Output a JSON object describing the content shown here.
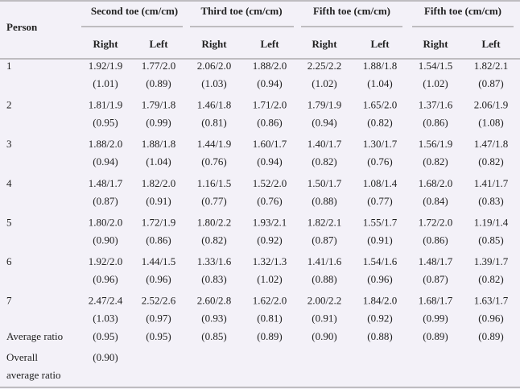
{
  "table": {
    "header": {
      "first": "Person",
      "groups": [
        "Second toe (cm/cm)",
        "Third toe (cm/cm)",
        "Fifth toe (cm/cm)",
        "Fifth toe (cm/cm)"
      ],
      "sub": [
        "Right",
        "Left",
        "Right",
        "Left",
        "Right",
        "Left",
        "Right",
        "Left"
      ]
    },
    "rows": [
      {
        "label": "1",
        "cells": [
          [
            "1.92/1.9",
            "(1.01)"
          ],
          [
            "1.77/2.0",
            "(0.89)"
          ],
          [
            "2.06/2.0",
            "(1.03)"
          ],
          [
            "1.88/2.0",
            "(0.94)"
          ],
          [
            "2.25/2.2",
            "(1.02)"
          ],
          [
            "1.88/1.8",
            "(1.04)"
          ],
          [
            "1.54/1.5",
            "(1.02)"
          ],
          [
            "1.82/2.1",
            "(0.87)"
          ]
        ]
      },
      {
        "label": "2",
        "cells": [
          [
            "1.81/1.9",
            "(0.95)"
          ],
          [
            "1.79/1.8",
            "(0.99)"
          ],
          [
            "1.46/1.8",
            "(0.81)"
          ],
          [
            "1.71/2.0",
            "(0.86)"
          ],
          [
            "1.79/1.9",
            "(0.94)"
          ],
          [
            "1.65/2.0",
            "(0.82)"
          ],
          [
            "1.37/1.6",
            "(0.86)"
          ],
          [
            "2.06/1.9",
            "(1.08)"
          ]
        ]
      },
      {
        "label": "3",
        "cells": [
          [
            "1.88/2.0",
            "(0.94)"
          ],
          [
            "1.88/1.8",
            "(1.04)"
          ],
          [
            "1.44/1.9",
            "(0.76)"
          ],
          [
            "1.60/1.7",
            "(0.94)"
          ],
          [
            "1.40/1.7",
            "(0.82)"
          ],
          [
            "1.30/1.7",
            "(0.76)"
          ],
          [
            "1.56/1.9",
            "(0.82)"
          ],
          [
            "1.47/1.8",
            "(0.82)"
          ]
        ]
      },
      {
        "label": "4",
        "cells": [
          [
            "1.48/1.7",
            "(0.87)"
          ],
          [
            "1.82/2.0",
            "(0.91)"
          ],
          [
            "1.16/1.5",
            "(0.77)"
          ],
          [
            "1.52/2.0",
            "(0.76)"
          ],
          [
            "1.50/1.7",
            "(0.88)"
          ],
          [
            "1.08/1.4",
            "(0.77)"
          ],
          [
            "1.68/2.0",
            "(0.84)"
          ],
          [
            "1.41/1.7",
            "(0.83)"
          ]
        ]
      },
      {
        "label": "5",
        "cells": [
          [
            "1.80/2.0",
            "(0.90)"
          ],
          [
            "1.72/1.9",
            "(0.86)"
          ],
          [
            "1.80/2.2",
            "(0.82)"
          ],
          [
            "1.93/2.1",
            "(0.92)"
          ],
          [
            "1.82/2.1",
            "(0.87)"
          ],
          [
            "1.55/1.7",
            "(0.91)"
          ],
          [
            "1.72/2.0",
            "(0.86)"
          ],
          [
            "1.19/1.4",
            "(0.85)"
          ]
        ]
      },
      {
        "label": "6",
        "cells": [
          [
            "1.92/2.0",
            "(0.96)"
          ],
          [
            "1.44/1.5",
            "(0.96)"
          ],
          [
            "1.33/1.6",
            "(0.83)"
          ],
          [
            "1.32/1.3",
            "(1.02)"
          ],
          [
            "1.41/1.6",
            "(0.88)"
          ],
          [
            "1.54/1.6",
            "(0.96)"
          ],
          [
            "1.48/1.7",
            "(0.87)"
          ],
          [
            "1.39/1.7",
            "(0.82)"
          ]
        ]
      },
      {
        "label": "7",
        "cells": [
          [
            "2.47/2.4",
            "(1.03)"
          ],
          [
            "2.52/2.6",
            "(0.97)"
          ],
          [
            "2.60/2.8",
            "(0.93)"
          ],
          [
            "1.62/2.0",
            "(0.81)"
          ],
          [
            "2.00/2.2",
            "(0.91)"
          ],
          [
            "1.84/2.0",
            "(0.92)"
          ],
          [
            "1.68/1.7",
            "(0.99)"
          ],
          [
            "1.63/1.7",
            "(0.96)"
          ]
        ]
      }
    ],
    "average": {
      "label": "Average ratio",
      "cells": [
        "(0.95)",
        "(0.95)",
        "(0.85)",
        "(0.89)",
        "(0.90)",
        "(0.88)",
        "(0.89)",
        "(0.89)"
      ]
    },
    "overall": {
      "label": [
        "Overall",
        "average ratio"
      ],
      "value": "(0.90)"
    }
  }
}
